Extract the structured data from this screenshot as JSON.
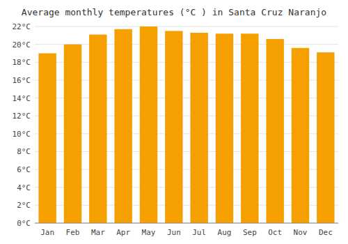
{
  "chart_data": {
    "type": "bar",
    "title": "Average monthly temperatures (°C ) in Santa Cruz Naranjo",
    "categories": [
      "Jan",
      "Feb",
      "Mar",
      "Apr",
      "May",
      "Jun",
      "Jul",
      "Aug",
      "Sep",
      "Oct",
      "Nov",
      "Dec"
    ],
    "values": [
      19.0,
      20.0,
      21.1,
      21.7,
      22.0,
      21.5,
      21.3,
      21.2,
      21.2,
      20.6,
      19.6,
      19.1
    ],
    "color": "#F5A000",
    "ylim": [
      0,
      22
    ],
    "yticks": [
      {
        "value": 0,
        "label": "0°C"
      },
      {
        "value": 2,
        "label": "2°C"
      },
      {
        "value": 4,
        "label": "4°C"
      },
      {
        "value": 6,
        "label": "6°C"
      },
      {
        "value": 8,
        "label": "8°C"
      },
      {
        "value": 10,
        "label": "10°C"
      },
      {
        "value": 12,
        "label": "12°C"
      },
      {
        "value": 14,
        "label": "14°C"
      },
      {
        "value": 16,
        "label": "16°C"
      },
      {
        "value": 18,
        "label": "18°C"
      },
      {
        "value": 20,
        "label": "20°C"
      },
      {
        "value": 22,
        "label": "22°C"
      }
    ],
    "grid": true
  }
}
